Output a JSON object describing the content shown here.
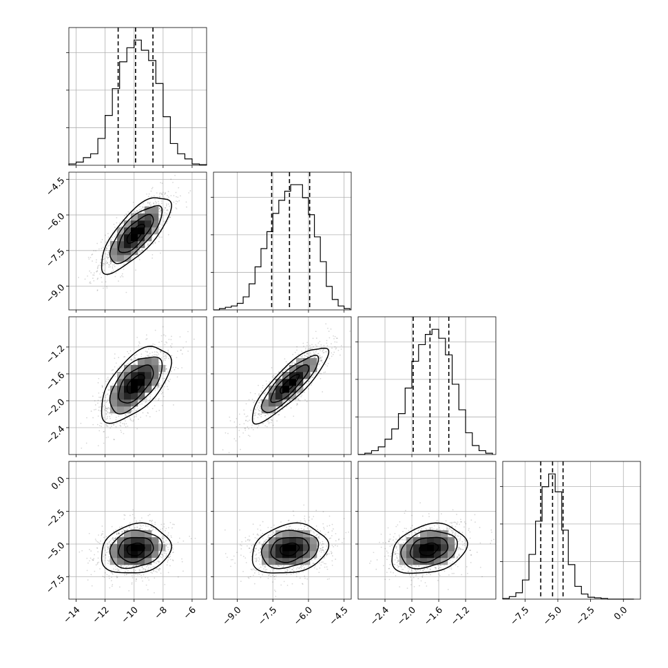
{
  "chart_data": {
    "type": "corner",
    "parameters": 4,
    "grid": true,
    "colors": {
      "lines": "#000000",
      "grid": "#b0b0b0",
      "background": "#ffffff"
    },
    "axes": [
      {
        "range": [
          -14.5,
          -5
        ],
        "ticks": [
          -14,
          -12,
          -10,
          -8,
          -6
        ],
        "tick_labels": [
          "−14",
          "−12",
          "−10",
          "−8",
          "−6"
        ]
      },
      {
        "range": [
          -10,
          -4.2
        ],
        "ticks": [
          -9.0,
          -7.5,
          -6.0,
          -4.5
        ],
        "tick_labels": [
          "−9.0",
          "−7.5",
          "−6.0",
          "−4.5"
        ]
      },
      {
        "range": [
          -2.8,
          -0.75
        ],
        "ticks": [
          -2.4,
          -2.0,
          -1.6,
          -1.2
        ],
        "tick_labels": [
          "−2.4",
          "−2.0",
          "−1.6",
          "−1.2"
        ]
      },
      {
        "range": [
          -9.2,
          1.3
        ],
        "ticks": [
          -7.5,
          -5.0,
          -2.5,
          0.0
        ],
        "tick_labels": [
          "−7.5",
          "−5.0",
          "−2.5",
          "0.0"
        ]
      }
    ],
    "histograms": [
      {
        "edges": [
          -14.5,
          -14,
          -13.5,
          -13,
          -12.5,
          -12,
          -11.5,
          -11,
          -10.5,
          -10,
          -9.5,
          -9,
          -8.5,
          -8,
          -7.5,
          -7,
          -6.5,
          -6,
          -5.5,
          -5
        ],
        "counts": [
          0.01,
          0.025,
          0.06,
          0.09,
          0.21,
          0.39,
          0.6,
          0.81,
          0.92,
          0.98,
          0.9,
          0.82,
          0.64,
          0.38,
          0.17,
          0.09,
          0.05,
          0.01,
          0.005
        ],
        "quantiles": [
          -11.1,
          -9.9,
          -8.7
        ]
      },
      {
        "edges": [
          -10,
          -9.75,
          -9.5,
          -9.25,
          -9,
          -8.75,
          -8.5,
          -8.25,
          -8,
          -7.75,
          -7.5,
          -7.25,
          -7,
          -6.75,
          -6.5,
          -6.25,
          -6,
          -5.75,
          -5.5,
          -5.25,
          -5,
          -4.75,
          -4.5,
          -4.25
        ],
        "counts": [
          0,
          0.01,
          0.02,
          0.03,
          0.05,
          0.1,
          0.2,
          0.33,
          0.47,
          0.6,
          0.74,
          0.84,
          0.91,
          0.96,
          0.96,
          0.86,
          0.73,
          0.56,
          0.37,
          0.18,
          0.08,
          0.03,
          0.01
        ],
        "quantiles": [
          -7.55,
          -6.8,
          -5.95
        ]
      },
      {
        "edges": [
          -2.8,
          -2.7,
          -2.6,
          -2.5,
          -2.4,
          -2.3,
          -2.2,
          -2.1,
          -2.0,
          -1.9,
          -1.8,
          -1.7,
          -1.6,
          -1.5,
          -1.4,
          -1.3,
          -1.2,
          -1.1,
          -1.0,
          -0.9,
          -0.8
        ],
        "counts": [
          0,
          0.01,
          0.03,
          0.06,
          0.12,
          0.2,
          0.32,
          0.52,
          0.73,
          0.86,
          0.94,
          0.98,
          0.91,
          0.78,
          0.55,
          0.35,
          0.17,
          0.07,
          0.03,
          0.01
        ],
        "quantiles": [
          -1.98,
          -1.73,
          -1.45
        ]
      },
      {
        "edges": [
          -9.2,
          -8.7,
          -8.2,
          -7.7,
          -7.2,
          -6.7,
          -6.2,
          -5.7,
          -5.2,
          -4.7,
          -4.2,
          -3.7,
          -3.2,
          -2.7,
          -2.2,
          -1.7,
          -1.2,
          -0.7,
          -0.2,
          0.3,
          0.8
        ],
        "counts": [
          0.005,
          0.02,
          0.05,
          0.15,
          0.35,
          0.61,
          0.88,
          0.98,
          0.84,
          0.54,
          0.27,
          0.1,
          0.04,
          0.015,
          0.01,
          0.005,
          0,
          0,
          0,
          0
        ],
        "quantiles": [
          -6.3,
          -5.4,
          -4.6
        ]
      }
    ],
    "pairs": [
      {
        "row": 1,
        "col": 0,
        "mean": [
          -9.9,
          -6.8
        ],
        "sd": [
          1.2,
          0.8
        ],
        "corr": 0.75
      },
      {
        "row": 2,
        "col": 0,
        "mean": [
          -9.9,
          -1.75
        ],
        "sd": [
          1.2,
          0.28
        ],
        "corr": 0.6
      },
      {
        "row": 2,
        "col": 1,
        "mean": [
          -6.8,
          -1.75
        ],
        "sd": [
          0.8,
          0.28
        ],
        "corr": 0.85
      },
      {
        "row": 3,
        "col": 0,
        "mean": [
          -9.9,
          -5.4
        ],
        "sd": [
          1.2,
          0.95
        ],
        "corr": 0.15
      },
      {
        "row": 3,
        "col": 1,
        "mean": [
          -6.8,
          -5.4
        ],
        "sd": [
          0.8,
          0.95
        ],
        "corr": 0.2
      },
      {
        "row": 3,
        "col": 2,
        "mean": [
          -1.75,
          -5.4
        ],
        "sd": [
          0.28,
          0.95
        ],
        "corr": 0.25
      }
    ]
  }
}
